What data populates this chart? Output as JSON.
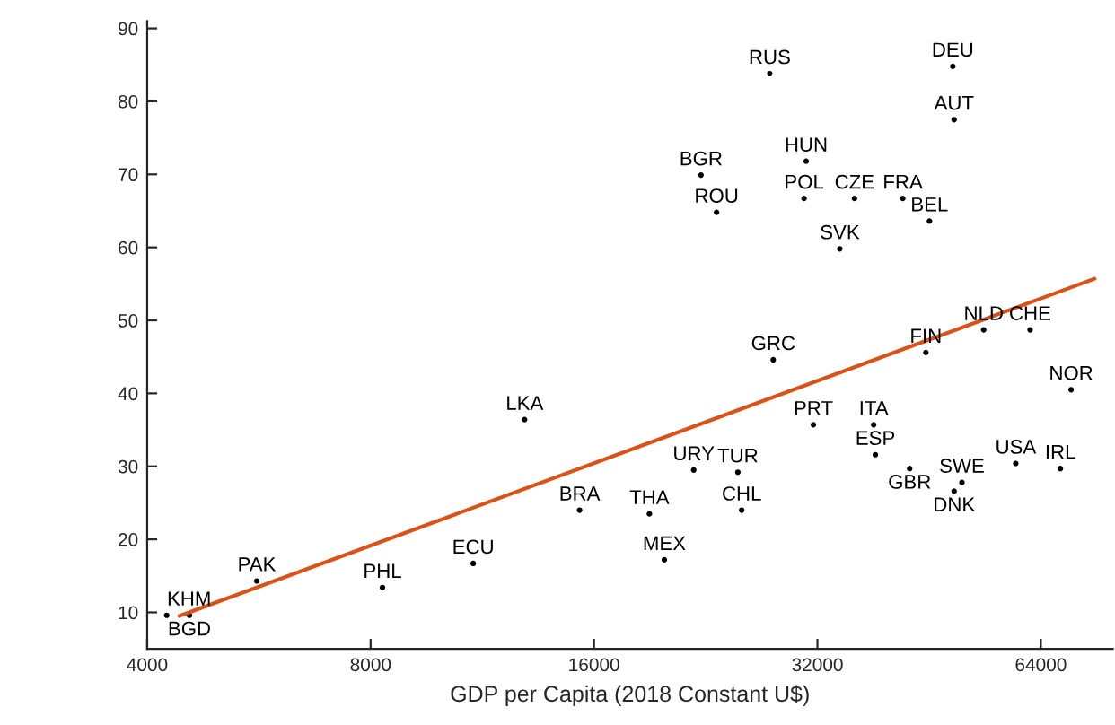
{
  "chart_data": {
    "type": "scatter",
    "xlabel": "GDP per Capita (2018 Constant U$)",
    "log": "x",
    "grid": false,
    "xlim": [
      4000,
      80000
    ],
    "xticks": [
      4000,
      8000,
      16000,
      32000,
      64000
    ],
    "ylim": [
      5,
      91
    ],
    "yticks": [
      10,
      20,
      30,
      40,
      50,
      60,
      70,
      80,
      90
    ],
    "series": [
      {
        "color": "#000000",
        "marker": "circle",
        "x": [
          27600,
          48700,
          48900,
          30900,
          22300,
          23400,
          30700,
          35900,
          41700,
          45300,
          34300,
          27900,
          44800,
          53600,
          61900,
          70300,
          12900,
          31600,
          38100,
          38300,
          59200,
          68000,
          42600,
          50100,
          48900,
          21800,
          25000,
          25300,
          15300,
          19000,
          19900,
          11000,
          5620,
          8300,
          4250,
          4560
        ],
        "values": [
          83.8,
          84.8,
          77.5,
          71.8,
          69.9,
          64.8,
          66.7,
          66.7,
          66.7,
          63.6,
          59.8,
          44.6,
          45.6,
          48.7,
          48.7,
          40.5,
          36.4,
          35.7,
          35.7,
          31.6,
          30.4,
          29.7,
          29.7,
          27.8,
          26.6,
          29.5,
          29.2,
          24.0,
          24.0,
          23.5,
          17.2,
          16.7,
          14.3,
          13.4,
          9.6,
          9.6
        ],
        "value_labels": [
          "RUS",
          "DEU",
          "AUT",
          "HUN",
          "BGR",
          "ROU",
          "POL",
          "CZE",
          "FRA",
          "BEL",
          "SVK",
          "GRC",
          "FIN",
          "NLD",
          "CHE",
          "NOR",
          "LKA",
          "PRT",
          "ITA",
          "ESP",
          "USA",
          "IRL",
          "GBR",
          "SWE",
          "DNK",
          "URY",
          "TUR",
          "CHL",
          "BRA",
          "THA",
          "MEX",
          "ECU",
          "PAK",
          "PHL",
          "KHM",
          "BGD"
        ]
      },
      {
        "type": "line",
        "color": "#d95319",
        "marker": "none",
        "x": [
          4420,
          75600
        ],
        "values": [
          9.5,
          55.7
        ]
      }
    ]
  }
}
